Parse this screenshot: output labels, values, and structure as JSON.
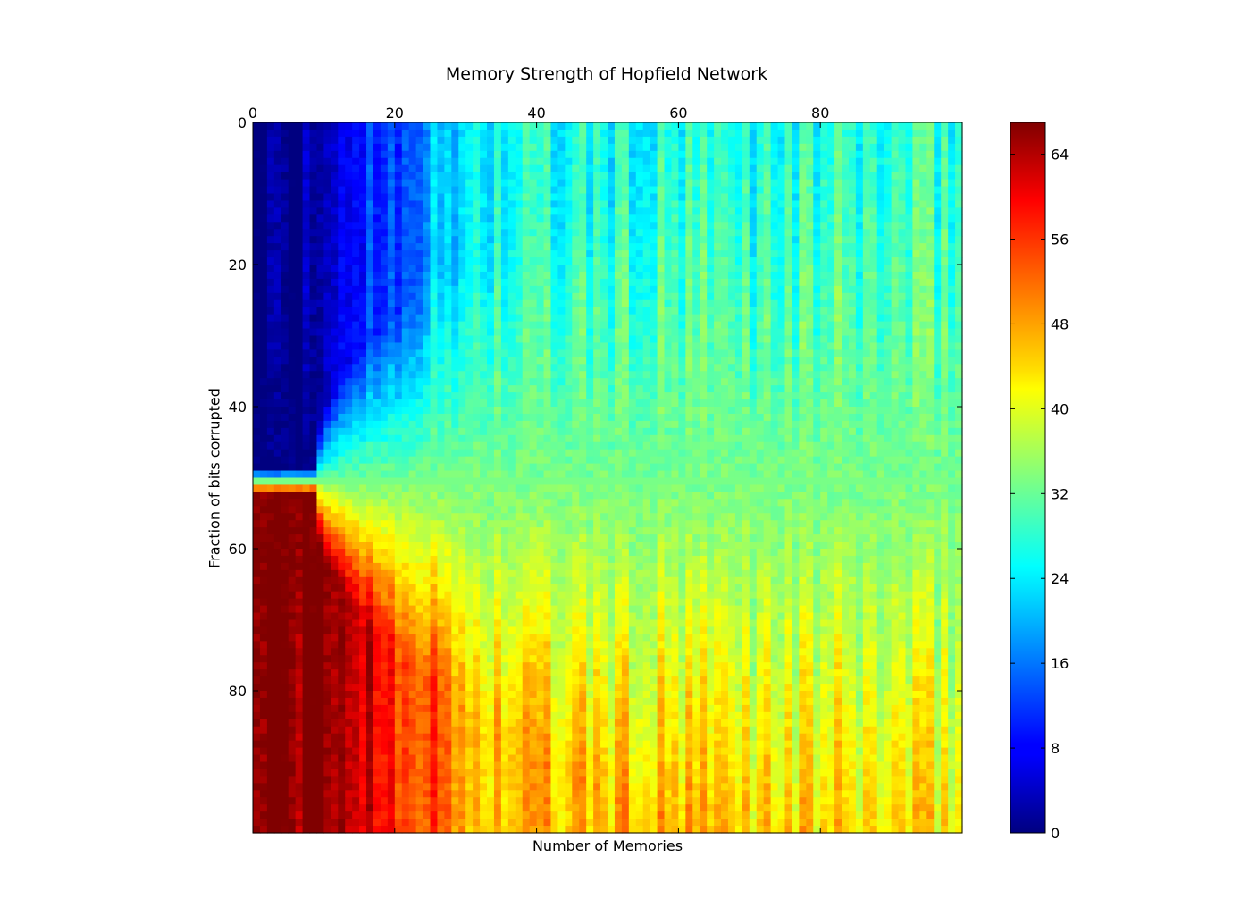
{
  "chart_data": {
    "type": "heatmap",
    "title": "Memory Strength of Hopfield Network",
    "xlabel": "Number of Memories",
    "ylabel": "Fraction of bits corrupted",
    "colormap": "jet",
    "n_rows": 100,
    "n_cols": 100,
    "x_ticks": [
      "0",
      "20",
      "40",
      "60",
      "80"
    ],
    "y_ticks": [
      "0",
      "20",
      "40",
      "60",
      "80"
    ],
    "xlim": [
      0,
      100
    ],
    "ylim": [
      100,
      0
    ],
    "x_axis_position": "top",
    "colorbar": {
      "ticks": [
        "0",
        "8",
        "16",
        "24",
        "32",
        "40",
        "48",
        "56",
        "64"
      ],
      "range": [
        0,
        67
      ]
    },
    "summary": {
      "top_left_region_value": 0,
      "bottom_left_region_value": 67,
      "midline_row": 50,
      "midline_value": 33,
      "large_memory_top_value_approx": 28,
      "large_memory_bottom_value_approx": 43
    },
    "grid": false
  }
}
